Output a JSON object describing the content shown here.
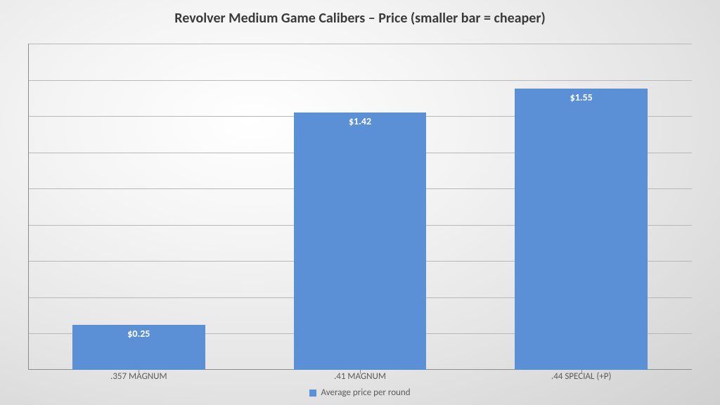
{
  "chart": {
    "type": "bar",
    "title": "Revolver Medium Game Calibers – Price (smaller bar = cheaper)",
    "title_fontsize": 20,
    "title_color": "#3a3a3a",
    "categories": [
      ".357 MAGNUM",
      ".41 MAGNUM",
      ".44 SPECIAL (+P)"
    ],
    "values": [
      0.25,
      1.42,
      1.55
    ],
    "value_labels": [
      "$0.25",
      "$1.42",
      "$1.55"
    ],
    "bar_color": "#5b8fd6",
    "bar_width_pct": 60,
    "value_label_fontsize": 14,
    "value_label_color": "#ffffff",
    "x_label_fontsize": 13,
    "x_label_color": "#5a5a5a",
    "ylim": [
      0,
      1.8
    ],
    "gridline_step": 0.2,
    "gridline_color": "#b8b8b8",
    "axis_color": "#8c8c8c",
    "legend_label": "Average price per round",
    "legend_fontsize": 13,
    "legend_color": "#5a5a5a"
  }
}
